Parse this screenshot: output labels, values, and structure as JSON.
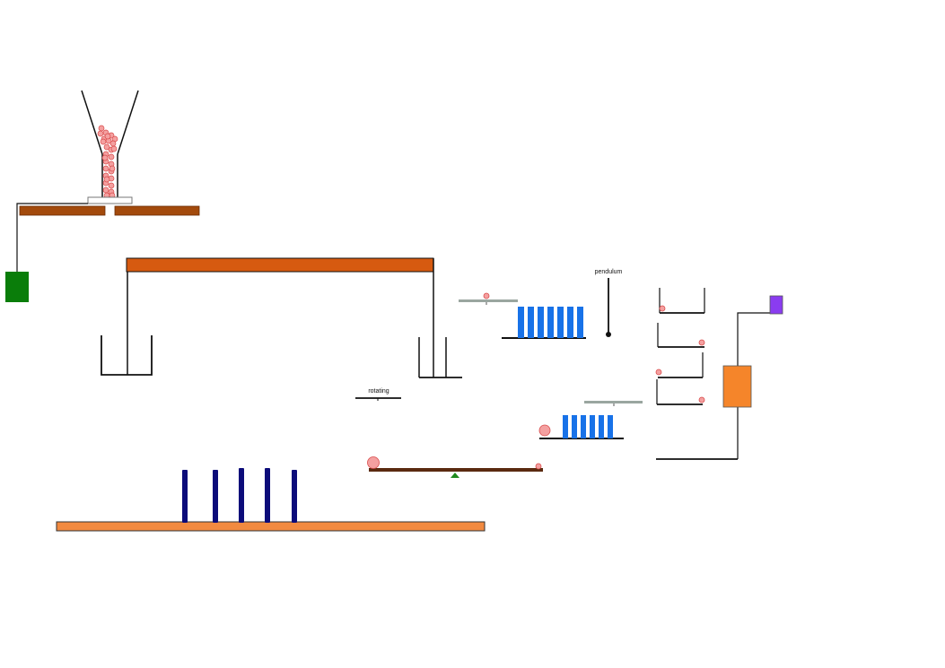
{
  "labels": {
    "pendulum": "pendulum",
    "rotating": "rotating"
  },
  "colors": {
    "background": "#ffffff",
    "ball": "#f4a0a0",
    "ball_stroke": "#d94c4c",
    "hopper_shelf": "#a34a0c",
    "beam": "#d65a10",
    "floor_plank": "#f28a40",
    "seesaw_plank": "#5a2a10",
    "seesaw_pivot": "#1f8a1f",
    "tall_dominoes": "#0c0c7a",
    "small_dominoes": "#1872e8",
    "gray_bar": "#9aa6a0",
    "green_weight": "#0a7d0a",
    "orange_block": "#f5852a",
    "purple_block": "#8a3cf0",
    "line": "#111111"
  },
  "scene": {
    "hopper_ball_count": 30,
    "tall_domino_count": 5,
    "upper_domino_count": 7,
    "lower_domino_count": 6,
    "step_shelf_count": 4
  }
}
